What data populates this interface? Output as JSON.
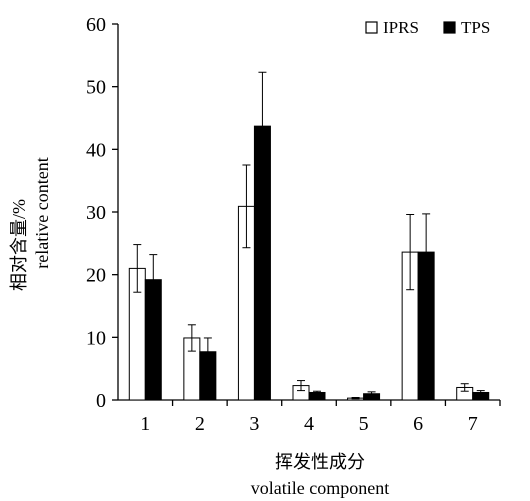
{
  "chart_data": {
    "type": "bar",
    "categories": [
      "1",
      "2",
      "3",
      "4",
      "5",
      "6",
      "7"
    ],
    "series": [
      {
        "name": "IPRS",
        "color": "#ffffff",
        "values": [
          21.0,
          9.9,
          30.9,
          2.3,
          0.3,
          23.6,
          2.0
        ],
        "errors": [
          3.8,
          2.1,
          6.6,
          0.8,
          0.1,
          6.0,
          0.6
        ]
      },
      {
        "name": "TPS",
        "color": "#000000",
        "values": [
          19.2,
          7.7,
          43.7,
          1.2,
          1.0,
          23.6,
          1.2
        ],
        "errors": [
          4.0,
          2.2,
          8.6,
          0.2,
          0.3,
          6.1,
          0.3
        ]
      }
    ],
    "ylim": [
      0,
      60
    ],
    "yticks": [
      0,
      10,
      20,
      30,
      40,
      50,
      60
    ],
    "ylabel_lines": [
      "相对含量/%",
      "relative content"
    ],
    "xlabel_lines": [
      "挥发性成分",
      "volatile component"
    ],
    "legend_position": "top-right",
    "grid": false
  }
}
